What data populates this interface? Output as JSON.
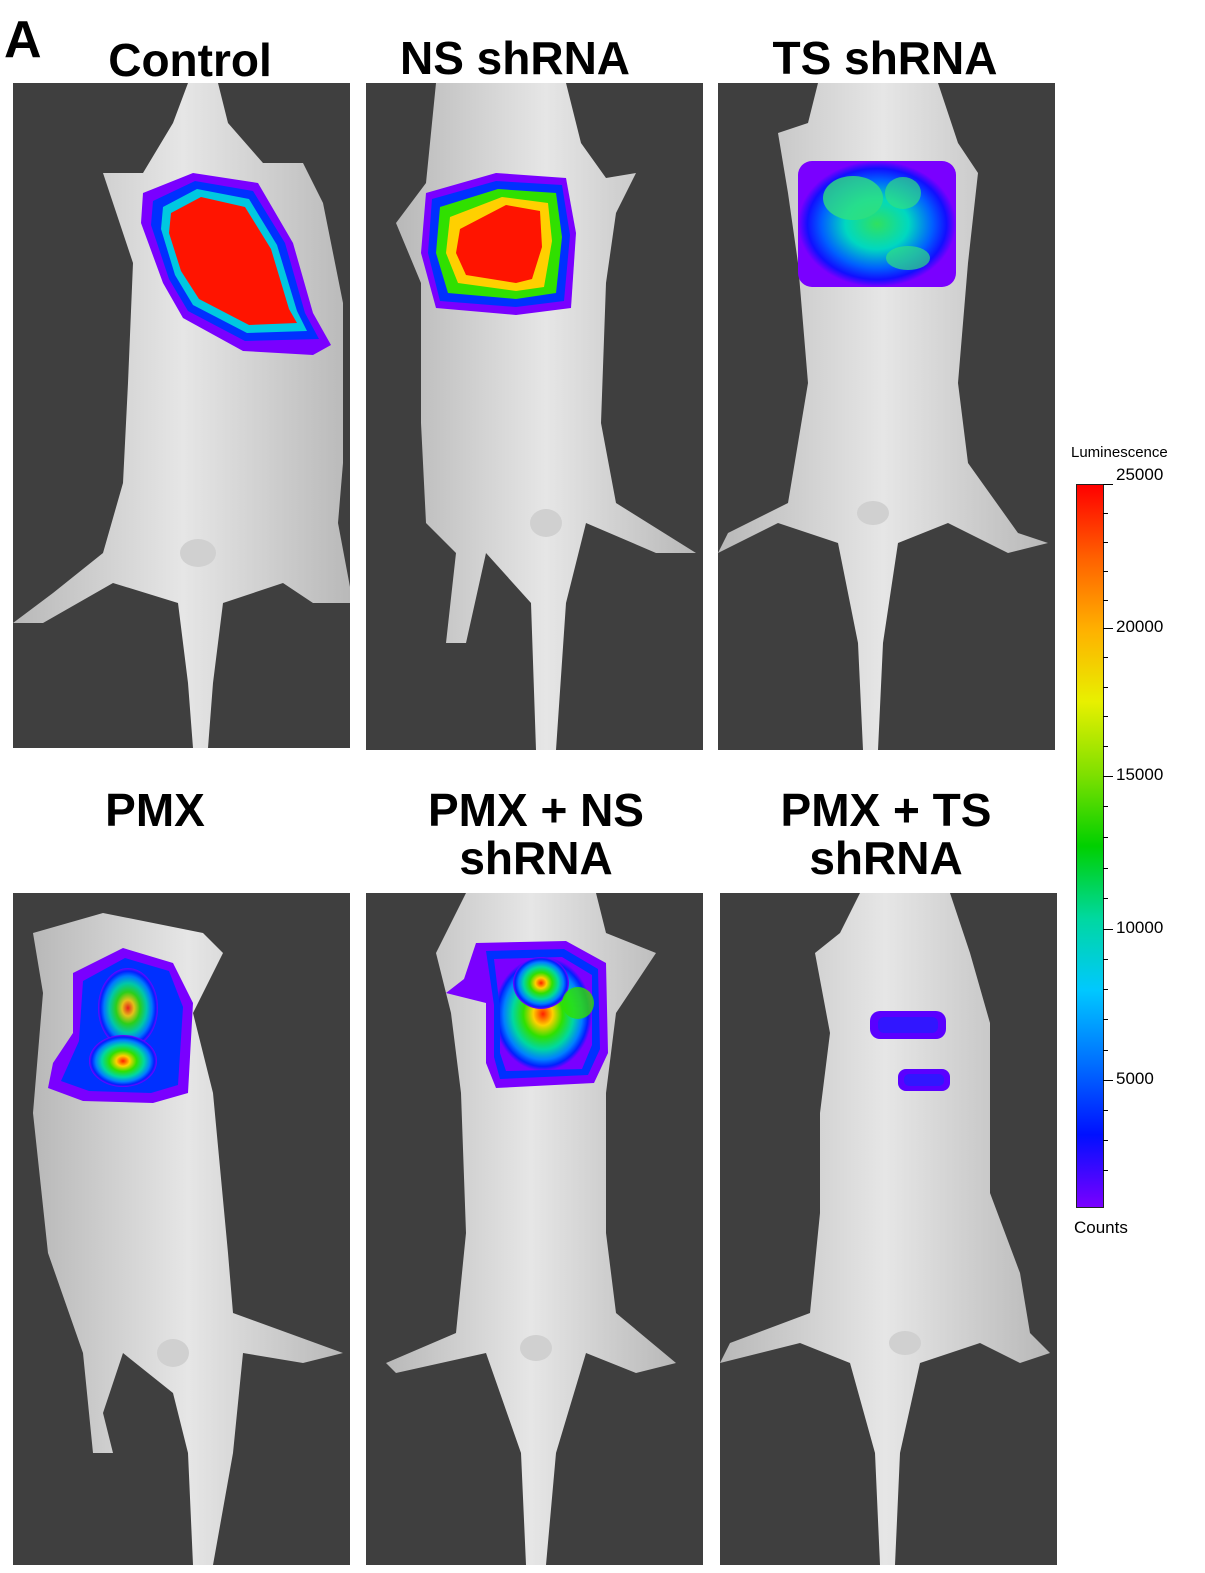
{
  "figure": {
    "panel_letter": "A",
    "groups": [
      {
        "label_lines": [
          "Control"
        ],
        "signal": "high"
      },
      {
        "label_lines": [
          "NS shRNA"
        ],
        "signal": "high"
      },
      {
        "label_lines": [
          "TS shRNA"
        ],
        "signal": "medium"
      },
      {
        "label_lines": [
          "PMX"
        ],
        "signal": "medium"
      },
      {
        "label_lines": [
          "PMX + NS",
          "shRNA"
        ],
        "signal": "medium"
      },
      {
        "label_lines": [
          "PMX + TS",
          "shRNA"
        ],
        "signal": "low"
      }
    ]
  },
  "scale": {
    "title": "Luminescence",
    "bottom_label": "Counts",
    "max": 25000,
    "ticks": [
      "25000",
      "20000",
      "15000",
      "10000",
      "5000"
    ]
  }
}
